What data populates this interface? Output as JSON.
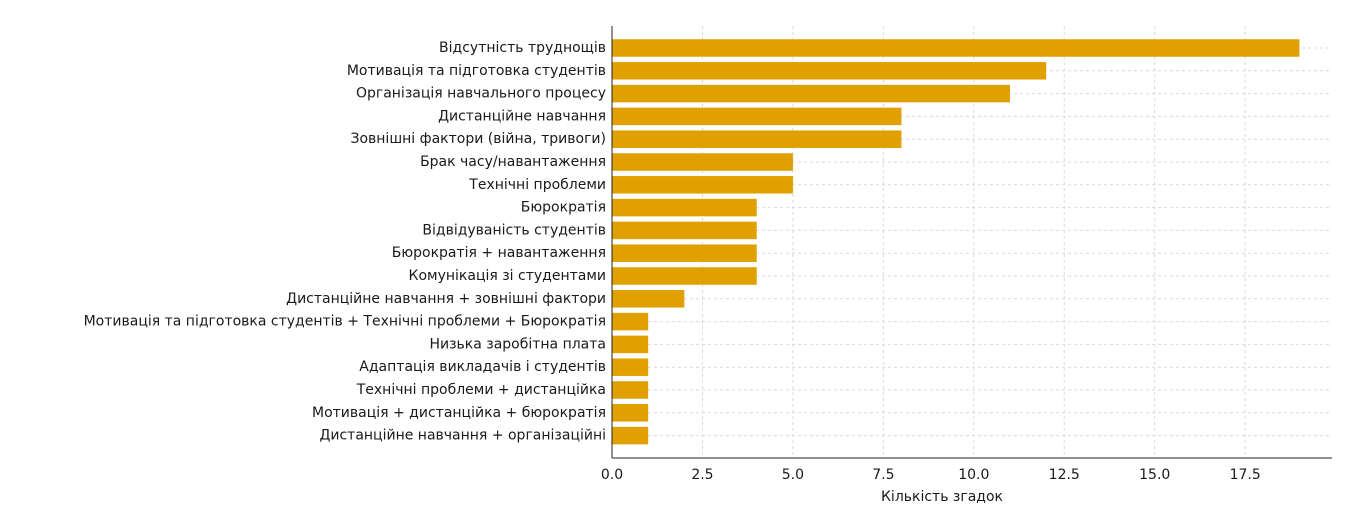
{
  "chart_data": {
    "type": "bar",
    "orientation": "horizontal",
    "title": "",
    "xlabel": "Кількість згадок",
    "ylabel": "",
    "xlim": [
      0,
      19.9
    ],
    "x_ticks": [
      0,
      2.5,
      5,
      7.5,
      10,
      12.5,
      15,
      17.5
    ],
    "x_tick_labels": [
      "0.0",
      "2.5",
      "5.0",
      "7.5",
      "10.0",
      "12.5",
      "15.0",
      "17.5"
    ],
    "grid": true,
    "bar_color": "#E0A000",
    "categories": [
      "Відсутність труднощів",
      "Мотивація та підготовка студентів",
      "Організація навчального процесу",
      "Дистанційне навчання",
      "Зовнішні фактори (війна, тривоги)",
      "Брак часу/навантаження",
      "Технічні проблеми",
      "Бюрократія",
      "Відвідуваність студентів",
      "Бюрократія + навантаження",
      "Комунікація зі студентами",
      "Дистанційне навчання + зовнішні фактори",
      "Мотивація та підготовка студентів + Технічні проблеми + Бюрократія",
      "Низька заробітна плата",
      "Адаптація викладачів і студентів",
      "Технічні проблеми + дистанційка",
      "Мотивація + дистанційка + бюрократія",
      "Дистанційне навчання + організаційні"
    ],
    "values": [
      19,
      12,
      11,
      8,
      8,
      5,
      5,
      4,
      4,
      4,
      4,
      2,
      1,
      1,
      1,
      1,
      1,
      1
    ]
  }
}
